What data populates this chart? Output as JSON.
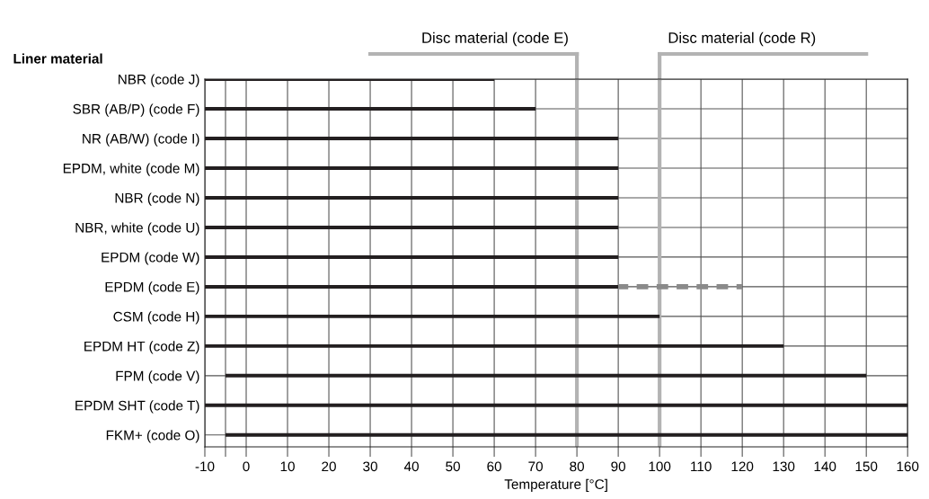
{
  "chart_data": {
    "type": "bar",
    "orientation": "horizontal",
    "title": "Liner material",
    "xlabel": "Temperature [°C]",
    "categories": [
      "NBR (code J)",
      "SBR (AB/P) (code F)",
      "NR (AB/W) (code I)",
      "EPDM, white (code M)",
      "NBR (code N)",
      "NBR, white (code U)",
      "EPDM (code W)",
      "EPDM (code E)",
      "CSM (code H)",
      "EPDM HT (code Z)",
      "FPM (code V)",
      "EPDM SHT (code T)",
      "FKM+ (code O)"
    ],
    "series": [
      {
        "color": "#231f20",
        "line_style": "solid",
        "base": [
          -10,
          -10,
          -10,
          -10,
          -10,
          -10,
          -10,
          -10,
          -10,
          -10,
          -5,
          -10,
          -5
        ],
        "values": [
          70,
          80,
          100,
          100,
          100,
          100,
          100,
          100,
          110,
          140,
          155,
          170,
          165
        ]
      },
      {
        "color": "#8a8a8a",
        "line_style": "dashed",
        "base": [
          null,
          null,
          null,
          null,
          null,
          null,
          null,
          90,
          null,
          null,
          null,
          null,
          null
        ],
        "values": [
          null,
          null,
          null,
          null,
          null,
          null,
          null,
          30,
          null,
          null,
          null,
          null,
          null
        ]
      }
    ],
    "xlim": [
      -10,
      160
    ],
    "xticks": [
      -10,
      {
        "value": -5,
        "label": null
      },
      0,
      10,
      20,
      30,
      40,
      50,
      60,
      70,
      80,
      90,
      100,
      110,
      120,
      130,
      140,
      150,
      160
    ],
    "grid": true,
    "ref_lines": [
      {
        "axis": "x",
        "value": 80,
        "label": "Disc material (code E)",
        "color": "#b3b3b3"
      },
      {
        "axis": "x",
        "value": 100,
        "label": "Disc material (code R)",
        "color": "#b3b3b3"
      }
    ]
  }
}
